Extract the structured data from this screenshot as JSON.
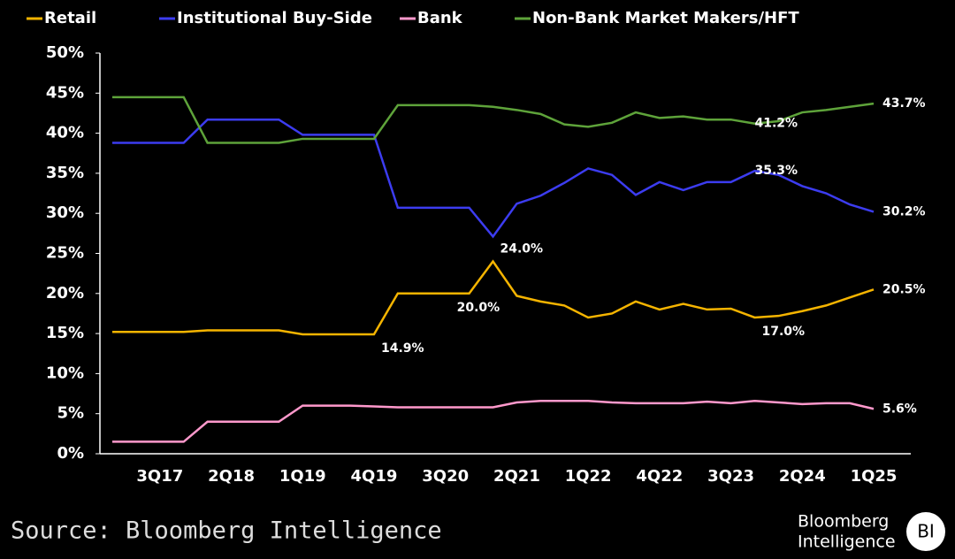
{
  "chart_data": {
    "type": "line",
    "categories": [
      null,
      null,
      "3Q17",
      null,
      null,
      "2Q18",
      null,
      null,
      "1Q19",
      null,
      null,
      "4Q19",
      null,
      null,
      "3Q20",
      null,
      null,
      "2Q21",
      null,
      null,
      "1Q22",
      null,
      null,
      "4Q22",
      null,
      null,
      "3Q23",
      null,
      null,
      "2Q24",
      null,
      null,
      "1Q25"
    ],
    "series": [
      {
        "name": "Retail",
        "color": "#f5b400",
        "values": [
          15.2,
          15.2,
          15.2,
          15.2,
          15.4,
          15.4,
          15.4,
          15.4,
          14.9,
          14.9,
          14.9,
          14.9,
          20.0,
          20.0,
          20.0,
          20.0,
          24.0,
          19.7,
          19.0,
          18.5,
          17.0,
          17.5,
          19.0,
          18.0,
          18.7,
          18.0,
          18.1,
          17.0,
          17.2,
          17.8,
          18.5,
          19.5,
          20.5
        ],
        "value_labels": [
          null,
          null,
          null,
          null,
          null,
          null,
          null,
          null,
          null,
          null,
          null,
          "14.9%",
          null,
          null,
          null,
          "20.0%",
          "24.0%",
          null,
          null,
          null,
          null,
          null,
          null,
          null,
          null,
          null,
          null,
          "17.0%",
          null,
          null,
          null,
          null,
          "20.5%"
        ]
      },
      {
        "name": "Institutional Buy-Side",
        "color": "#3c3cf0",
        "values": [
          38.8,
          38.8,
          38.8,
          38.8,
          41.7,
          41.7,
          41.7,
          41.7,
          39.8,
          39.8,
          39.8,
          39.8,
          30.7,
          30.7,
          30.7,
          30.7,
          27.1,
          31.2,
          32.2,
          33.8,
          35.6,
          34.8,
          32.3,
          33.9,
          32.9,
          33.9,
          33.9,
          35.3,
          34.8,
          33.4,
          32.5,
          31.1,
          30.2
        ],
        "value_labels": [
          null,
          null,
          null,
          null,
          null,
          null,
          null,
          null,
          null,
          null,
          null,
          null,
          null,
          null,
          null,
          null,
          null,
          null,
          null,
          null,
          null,
          null,
          null,
          null,
          null,
          null,
          null,
          "35.3%",
          null,
          null,
          null,
          null,
          "30.2%"
        ]
      },
      {
        "name": "Bank",
        "color": "#ff99cc",
        "values": [
          1.5,
          1.5,
          1.5,
          1.5,
          4.0,
          4.0,
          4.0,
          4.0,
          6.0,
          6.0,
          6.0,
          5.9,
          5.8,
          5.8,
          5.8,
          5.8,
          5.8,
          6.4,
          6.6,
          6.6,
          6.6,
          6.4,
          6.3,
          6.3,
          6.3,
          6.5,
          6.3,
          6.6,
          6.4,
          6.2,
          6.3,
          6.3,
          5.6
        ],
        "value_labels": [
          null,
          null,
          null,
          null,
          null,
          null,
          null,
          null,
          null,
          null,
          null,
          null,
          null,
          null,
          null,
          null,
          null,
          null,
          null,
          null,
          null,
          null,
          null,
          null,
          null,
          null,
          null,
          null,
          null,
          null,
          null,
          null,
          "5.6%"
        ]
      },
      {
        "name": "Non-Bank Market Makers/HFT",
        "color": "#5ea33a",
        "values": [
          44.5,
          44.5,
          44.5,
          44.5,
          38.8,
          38.8,
          38.8,
          38.8,
          39.3,
          39.3,
          39.3,
          39.3,
          43.5,
          43.5,
          43.5,
          43.5,
          43.3,
          42.9,
          42.4,
          41.1,
          40.8,
          41.3,
          42.6,
          41.9,
          42.1,
          41.7,
          41.7,
          41.2,
          41.5,
          42.6,
          42.9,
          43.3,
          43.7
        ],
        "value_labels": [
          null,
          null,
          null,
          null,
          null,
          null,
          null,
          null,
          null,
          null,
          null,
          null,
          null,
          null,
          null,
          null,
          null,
          null,
          null,
          null,
          null,
          null,
          null,
          null,
          null,
          null,
          null,
          "41.2%",
          null,
          null,
          null,
          null,
          "43.7%"
        ]
      }
    ],
    "ylim": [
      0,
      50
    ],
    "yticks": [
      {
        "value": 0,
        "label": "0%"
      },
      {
        "value": 5,
        "label": "5%"
      },
      {
        "value": 10,
        "label": "10%"
      },
      {
        "value": 15,
        "label": "15%"
      },
      {
        "value": 20,
        "label": "20%"
      },
      {
        "value": 25,
        "label": "25%"
      },
      {
        "value": 30,
        "label": "30%"
      },
      {
        "value": 35,
        "label": "35%"
      },
      {
        "value": 40,
        "label": "40%"
      },
      {
        "value": 45,
        "label": "45%"
      },
      {
        "value": 50,
        "label": "50%"
      }
    ],
    "legend": "top",
    "source": "Source: Bloomberg Intelligence",
    "logo": {
      "lines": [
        "Bloomberg",
        "Intelligence"
      ],
      "badge": "BI"
    }
  }
}
